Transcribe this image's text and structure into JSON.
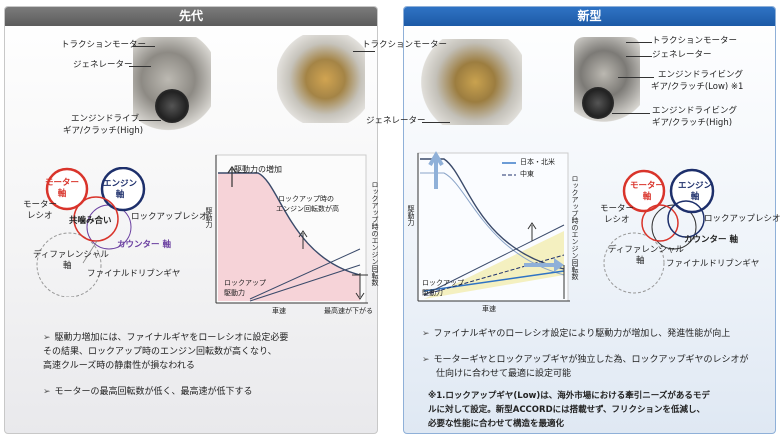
{
  "prev": {
    "title": "先代",
    "labels": {
      "traction_motor": "トラクションモーター",
      "generator": "ジェネレーター",
      "engine_drive_gear_1": "エンジンドライブ",
      "engine_drive_gear_2": "ギア/クラッチ(High)",
      "traction_motor_r": "トラクションモーター",
      "generator_r": "ジェネレーター"
    },
    "gear": {
      "motor_shaft": "モーター\n軸",
      "engine_shaft": "エンジン\n軸",
      "motor_ratio_1": "モーター",
      "motor_ratio_2": "レシオ",
      "common": "共噛み合い",
      "lockup_ratio": "ロックアップレシオ",
      "counter": "カウンター 軸",
      "diff_1": "ディファレンシャル",
      "diff_2": "軸",
      "final": "ファイナルドリブンギヤ"
    },
    "chart": {
      "note_top": "駆動力の増加",
      "lockup_rpm_1": "ロックアップ時の",
      "lockup_rpm_2": "エンジン回転数が高",
      "lockup_force_1": "ロックアップ",
      "lockup_force_2": "駆動力",
      "ylabel": "駆動力",
      "right_label": "ロックアップ時のエンジン回転数",
      "xlabel": "車速",
      "topspeed": "最高速が下がる"
    },
    "bullets": [
      "駆動力増加には、ファイナルギヤをローレシオに設定必要",
      "その結果、ロックアップ時のエンジン回転数が高くなり、",
      "高速クルーズ時の静粛性が損なわれる",
      "モーターの最高回転数が低く、最高速が低下する"
    ]
  },
  "next": {
    "title": "新型",
    "labels": {
      "traction_motor": "トラクションモーター",
      "generator": "ジェネレーター",
      "low_1": "エンジンドライビング",
      "low_2": "ギア/クラッチ(Low) ※1",
      "high_1": "エンジンドライビング",
      "high_2": "ギア/クラッチ(High)"
    },
    "legend": {
      "jp_na": "日本・北米",
      "me": "中東"
    },
    "chart": {
      "ylabel": "駆動力",
      "right_label": "ロックアップ時のエンジン回転数",
      "lockup_1": "ロックアップ",
      "lockup_2": "駆動力",
      "xlabel": "車速"
    },
    "gear": {
      "motor_shaft": "モーター\n軸",
      "engine_shaft": "エンジン\n軸",
      "motor_ratio_1": "モーター",
      "motor_ratio_2": "レシオ",
      "lockup_ratio": "ロックアップレシオ",
      "counter": "カウンター 軸",
      "diff_1": "ディファレンシャル",
      "diff_2": "軸",
      "final": "ファイナルドリブンギヤ"
    },
    "bullets": [
      "ファイナルギヤのローレシオ設定により駆動力が増加し、発進性能が向上",
      "モーターギヤとロックアップギヤが独立した為、ロックアップギヤのレシオが",
      "仕向けに合わせて最適に設定可能"
    ],
    "note": [
      "※1.ロックアップギヤ(Low)は、海外市場における牽引ニーズがあるモデ",
      "ルに対して設定。新型ACCORDには搭載せず、フリクションを低減し、",
      "必要な性能に合わせて構造を最適化"
    ]
  },
  "colors": {
    "motor_red": "#d9342b",
    "engine_navy": "#1d2f6b",
    "counter_purple": "#6a3fa0",
    "accent_blue": "#2f73c4",
    "pink_fill": "#f6d3d8",
    "yellow_fill": "#f4f0c0"
  }
}
